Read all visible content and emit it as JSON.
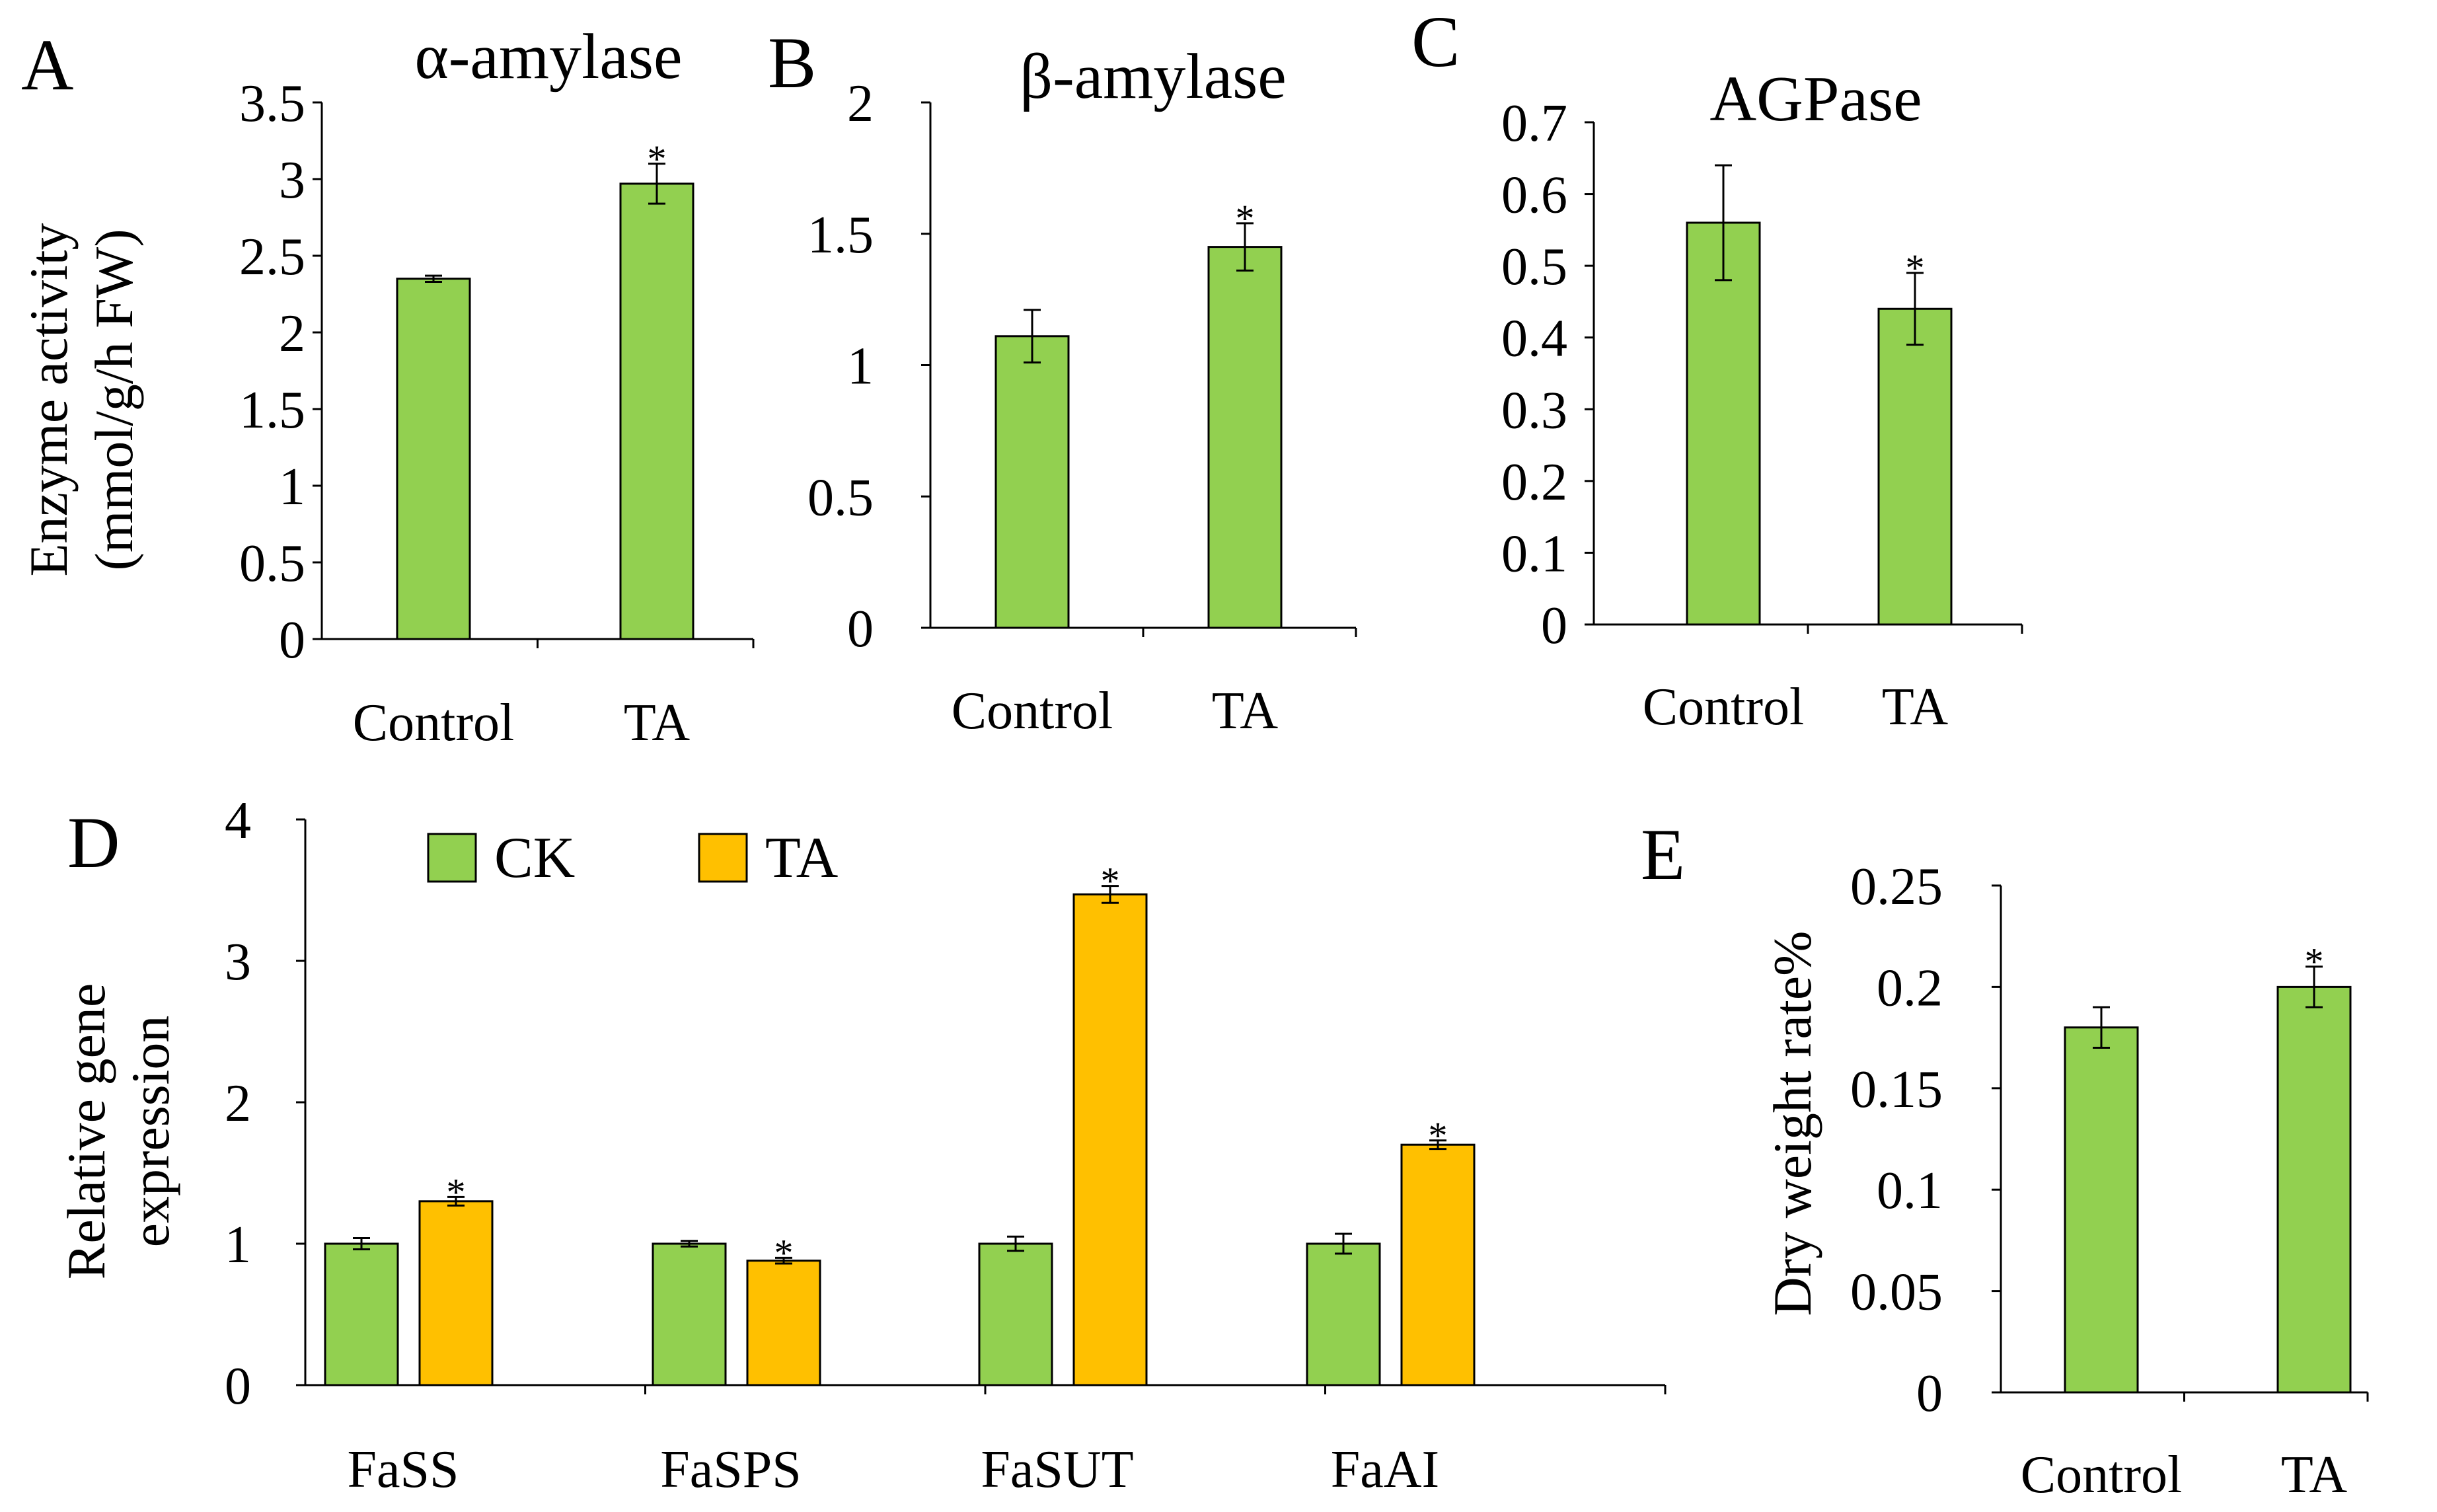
{
  "chart_data": [
    {
      "panel": "A",
      "type": "bar",
      "title": "α-amylase",
      "ylabel": [
        "Enzyme activity",
        "(mmol/g/h FW)"
      ],
      "xlabel": "",
      "categories": [
        "Control",
        "TA"
      ],
      "values": [
        2.35,
        2.97
      ],
      "errors": [
        0.02,
        0.13
      ],
      "significance": [
        "",
        "*"
      ],
      "ylim": [
        0,
        3.5
      ],
      "yticks": [
        "0",
        "0.5",
        "1",
        "1.5",
        "2",
        "2.5",
        "3",
        "3.5"
      ],
      "bar_color": "#92d050"
    },
    {
      "panel": "B",
      "type": "bar",
      "title": "β-amylase",
      "ylabel": [],
      "xlabel": "",
      "categories": [
        "Control",
        "TA"
      ],
      "values": [
        1.11,
        1.45
      ],
      "errors": [
        0.1,
        0.09
      ],
      "significance": [
        "",
        "*"
      ],
      "ylim": [
        0,
        2
      ],
      "yticks": [
        "0",
        "0.5",
        "1",
        "1.5",
        "2"
      ],
      "bar_color": "#92d050"
    },
    {
      "panel": "C",
      "type": "bar",
      "title": "AGPase",
      "ylabel": [],
      "xlabel": "",
      "categories": [
        "Control",
        "TA"
      ],
      "values": [
        0.56,
        0.44
      ],
      "errors": [
        0.08,
        0.05
      ],
      "significance": [
        "",
        "*"
      ],
      "ylim": [
        0,
        0.7
      ],
      "yticks": [
        "0",
        "0.1",
        "0.2",
        "0.3",
        "0.4",
        "0.5",
        "0.6",
        "0.7"
      ],
      "bar_color": "#92d050"
    },
    {
      "panel": "D",
      "type": "bar",
      "title": "",
      "ylabel": [
        "Relative gene",
        "expression"
      ],
      "xlabel": "",
      "categories": [
        "FaSS",
        "FaSPS",
        "FaSUT",
        "FaAI"
      ],
      "series": [
        {
          "name": "CK",
          "color": "#92d050",
          "values": [
            1.0,
            1.0,
            1.0,
            1.0
          ],
          "errors": [
            0.04,
            0.02,
            0.05,
            0.07
          ],
          "significance": [
            "",
            "",
            "",
            ""
          ]
        },
        {
          "name": "TA",
          "color": "#ffc000",
          "values": [
            1.3,
            0.88,
            3.47,
            1.7
          ],
          "errors": [
            0.03,
            0.02,
            0.06,
            0.03
          ],
          "significance": [
            "*",
            "*",
            "*",
            "*"
          ]
        }
      ],
      "legend": "top-left",
      "ylim": [
        0,
        4
      ],
      "yticks": [
        "0",
        "1",
        "2",
        "3",
        "4"
      ]
    },
    {
      "panel": "E",
      "type": "bar",
      "title": "",
      "ylabel": [
        "Dry weight rate%"
      ],
      "xlabel": "",
      "categories": [
        "Control",
        "TA"
      ],
      "values": [
        0.18,
        0.2
      ],
      "errors": [
        0.01,
        0.01
      ],
      "significance": [
        "",
        "*"
      ],
      "ylim": [
        0,
        0.25
      ],
      "yticks": [
        "0",
        "0.05",
        "0.1",
        "0.15",
        "0.2",
        "0.25"
      ],
      "bar_color": "#92d050"
    }
  ]
}
